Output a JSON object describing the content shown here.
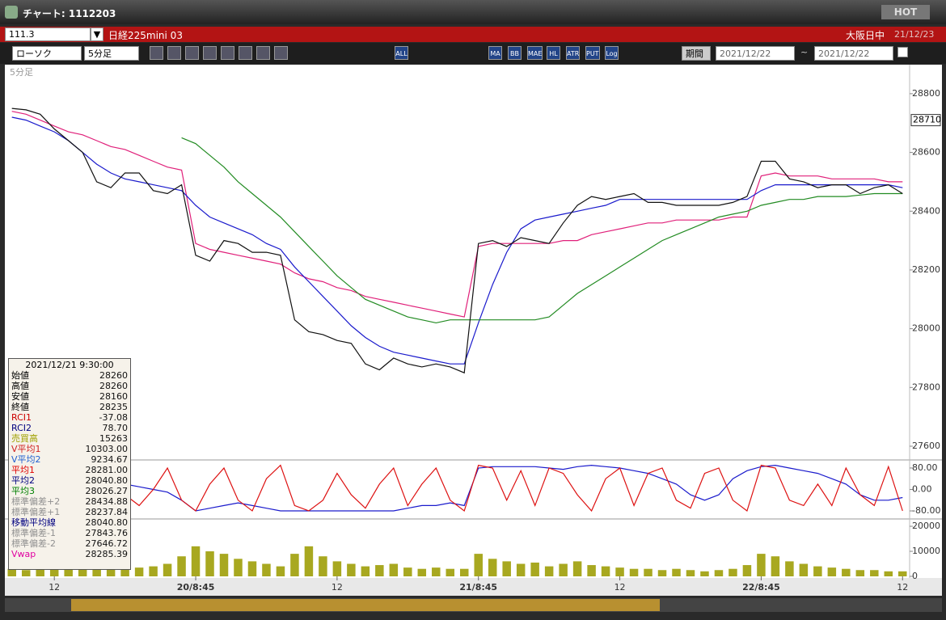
{
  "window": {
    "title": "チャート: 1112203",
    "hot": "HOT"
  },
  "symbol_bar": {
    "code": "111.3",
    "name": "日経225mini 03",
    "session": "大阪日中",
    "date": "21/12/23"
  },
  "toolbar": {
    "chart_type": "ローソク",
    "interval": "5分足",
    "icons": [
      "ALL",
      "MA",
      "BB",
      "MAE",
      "HL",
      "ATR",
      "PUT",
      "Log"
    ],
    "period": "期間",
    "from": "2021/12/22",
    "tilde": "~",
    "to": "2021/12/22"
  },
  "chart_data": [
    {
      "type": "line",
      "title": "5分足",
      "ylim": [
        27556,
        28885
      ],
      "yticks": [
        27600,
        27800,
        28000,
        28200,
        28400,
        28600,
        28800
      ],
      "marker": 28710,
      "series": [
        {
          "color": "#e0207a",
          "values": [
            28740,
            28730,
            28710,
            28690,
            28670,
            28660,
            28640,
            28620,
            28610,
            28590,
            28570,
            28550,
            28540,
            28290,
            28270,
            28260,
            28250,
            28240,
            28230,
            28220,
            28190,
            28170,
            28160,
            28140,
            28130,
            28110,
            28100,
            28090,
            28080,
            28070,
            28060,
            28050,
            28040,
            28280,
            28290,
            28290,
            28290,
            28290,
            28290,
            28300,
            28300,
            28320,
            28330,
            28340,
            28350,
            28360,
            28360,
            28370,
            28370,
            28370,
            28370,
            28380,
            28380,
            28520,
            28530,
            28520,
            28520,
            28520,
            28510,
            28510,
            28510,
            28510,
            28500,
            28500
          ]
        },
        {
          "color": "#1a1acc",
          "values": [
            28720,
            28710,
            28690,
            28670,
            28640,
            28600,
            28560,
            28530,
            28510,
            28500,
            28490,
            28480,
            28470,
            28420,
            28380,
            28360,
            28340,
            28320,
            28290,
            28270,
            28210,
            28160,
            28110,
            28060,
            28010,
            27970,
            27940,
            27920,
            27910,
            27900,
            27890,
            27880,
            27880,
            28020,
            28150,
            28260,
            28340,
            28370,
            28380,
            28390,
            28400,
            28410,
            28420,
            28440,
            28440,
            28440,
            28440,
            28440,
            28440,
            28440,
            28440,
            28440,
            28440,
            28470,
            28490,
            28490,
            28490,
            28490,
            28490,
            28490,
            28490,
            28490,
            28490,
            28480
          ]
        },
        {
          "color": "#228b22",
          "values": [
            null,
            null,
            null,
            null,
            null,
            null,
            null,
            null,
            null,
            null,
            null,
            null,
            28650,
            28630,
            28590,
            28550,
            28500,
            28460,
            28420,
            28380,
            28330,
            28280,
            28230,
            28180,
            28140,
            28100,
            28080,
            28060,
            28040,
            28030,
            28020,
            28030,
            28030,
            28030,
            28030,
            28030,
            28030,
            28030,
            28040,
            28080,
            28120,
            28150,
            28180,
            28210,
            28240,
            28270,
            28300,
            28320,
            28340,
            28360,
            28380,
            28390,
            28400,
            28420,
            28430,
            28440,
            28440,
            28450,
            28450,
            28450,
            28455,
            28460,
            28460,
            28460
          ]
        },
        {
          "color": "#111111",
          "values": [
            28750,
            28745,
            28730,
            28680,
            28640,
            28600,
            28500,
            28480,
            28530,
            28530,
            28470,
            28460,
            28490,
            28250,
            28230,
            28300,
            28290,
            28260,
            28260,
            28250,
            28030,
            27990,
            27980,
            27960,
            27950,
            27880,
            27860,
            27900,
            27880,
            27870,
            27880,
            27870,
            27850,
            28290,
            28300,
            28280,
            28310,
            28300,
            28290,
            28360,
            28420,
            28450,
            28440,
            28450,
            28460,
            28430,
            28430,
            28420,
            28420,
            28420,
            28420,
            28430,
            28450,
            28570,
            28570,
            28510,
            28500,
            28480,
            28490,
            28490,
            28460,
            28480,
            28490,
            28460
          ]
        }
      ]
    },
    {
      "type": "line",
      "ylim": [
        -104,
        107
      ],
      "yticks": [
        {
          "value": 80,
          "label": "80.00"
        },
        {
          "value": 0,
          "label": "0.00"
        },
        {
          "value": -80,
          "label": "-80.00"
        }
      ],
      "series": [
        {
          "color": "#1a1acc",
          "values": [
            -80,
            -80,
            -70,
            -60,
            -50,
            -40,
            -20,
            0,
            20,
            10,
            0,
            -10,
            -40,
            -80,
            -70,
            -60,
            -50,
            -60,
            -70,
            -80,
            -80,
            -80,
            -80,
            -80,
            -80,
            -80,
            -80,
            -80,
            -70,
            -60,
            -60,
            -50,
            -60,
            80,
            85,
            85,
            85,
            85,
            80,
            75,
            85,
            90,
            85,
            80,
            70,
            60,
            40,
            20,
            -20,
            -40,
            -20,
            40,
            70,
            85,
            90,
            80,
            70,
            60,
            40,
            20,
            -20,
            -40,
            -40,
            -30
          ]
        },
        {
          "color": "#dd1111",
          "values": [
            60,
            20,
            -40,
            60,
            -20,
            -60,
            20,
            80,
            -20,
            -60,
            0,
            80,
            -40,
            -80,
            20,
            80,
            -40,
            -80,
            40,
            90,
            -60,
            -80,
            -40,
            60,
            -20,
            -70,
            20,
            80,
            -60,
            20,
            80,
            -40,
            -80,
            90,
            80,
            -40,
            70,
            -60,
            80,
            60,
            -20,
            -80,
            40,
            80,
            -60,
            60,
            80,
            -40,
            -70,
            60,
            80,
            -40,
            -80,
            90,
            80,
            -40,
            -60,
            20,
            -60,
            80,
            -20,
            -60,
            85,
            -80
          ]
        }
      ]
    },
    {
      "type": "bar",
      "ylim": [
        0,
        22600
      ],
      "yticks": [
        0,
        10000,
        20000
      ],
      "color": "#a8a820",
      "categories": [
        null,
        null,
        null,
        "12",
        null,
        null,
        null,
        null,
        null,
        null,
        null,
        null,
        null,
        "20/8:45",
        null,
        null,
        null,
        null,
        null,
        null,
        null,
        null,
        null,
        "12",
        null,
        null,
        null,
        null,
        null,
        null,
        null,
        null,
        null,
        "21/8:45",
        null,
        null,
        null,
        null,
        null,
        null,
        null,
        null,
        null,
        "12",
        null,
        null,
        null,
        null,
        null,
        null,
        null,
        null,
        null,
        "22/8:45",
        null,
        null,
        null,
        null,
        null,
        null,
        null,
        null,
        null,
        "12"
      ],
      "values": [
        3000,
        2500,
        3500,
        4000,
        3000,
        5000,
        6000,
        4000,
        3000,
        3500,
        4000,
        5000,
        8000,
        12000,
        10000,
        9000,
        7000,
        6000,
        5000,
        4000,
        9000,
        12000,
        8000,
        6000,
        5000,
        4000,
        4500,
        5000,
        3500,
        3000,
        3500,
        3000,
        3000,
        9000,
        7000,
        6000,
        5000,
        5500,
        4000,
        5000,
        6000,
        4500,
        4000,
        3500,
        3000,
        3000,
        2500,
        3000,
        2500,
        2000,
        2500,
        3000,
        4500,
        9000,
        8000,
        6000,
        5000,
        4000,
        3500,
        3000,
        2500,
        2500,
        2000,
        2000
      ]
    }
  ],
  "info_panel": {
    "datetime": "2021/12/21 9:30:00",
    "rows": [
      {
        "label": "始値",
        "value": "28260",
        "color": "#000000"
      },
      {
        "label": "高値",
        "value": "28260",
        "color": "#000000"
      },
      {
        "label": "安値",
        "value": "28160",
        "color": "#000000"
      },
      {
        "label": "終値",
        "value": "28235",
        "color": "#000000"
      },
      {
        "label": "RCI1",
        "value": "-37.08",
        "color": "#cc0000"
      },
      {
        "label": "RCI2",
        "value": "78.70",
        "color": "#000080"
      },
      {
        "label": "売買高",
        "value": "15263",
        "color": "#a0a000"
      },
      {
        "label": "V平均1",
        "value": "10303.00",
        "color": "#d02020"
      },
      {
        "label": "V平均2",
        "value": "9234.67",
        "color": "#2060d0"
      },
      {
        "label": "平均1",
        "value": "28281.00",
        "color": "#e00000"
      },
      {
        "label": "平均2",
        "value": "28040.80",
        "color": "#000080"
      },
      {
        "label": "平均3",
        "value": "28026.27",
        "color": "#008000"
      },
      {
        "label": "標準偏差+2",
        "value": "28434.88",
        "color": "#909090"
      },
      {
        "label": "標準偏差+1",
        "value": "28237.84",
        "color": "#909090"
      },
      {
        "label": "移動平均線",
        "value": "28040.80",
        "color": "#000080"
      },
      {
        "label": "標準偏差-1",
        "value": "27843.76",
        "color": "#909090"
      },
      {
        "label": "標準偏差-2",
        "value": "27646.72",
        "color": "#909090"
      },
      {
        "label": "Vwap",
        "value": "28285.39",
        "color": "#e000a0"
      }
    ]
  }
}
